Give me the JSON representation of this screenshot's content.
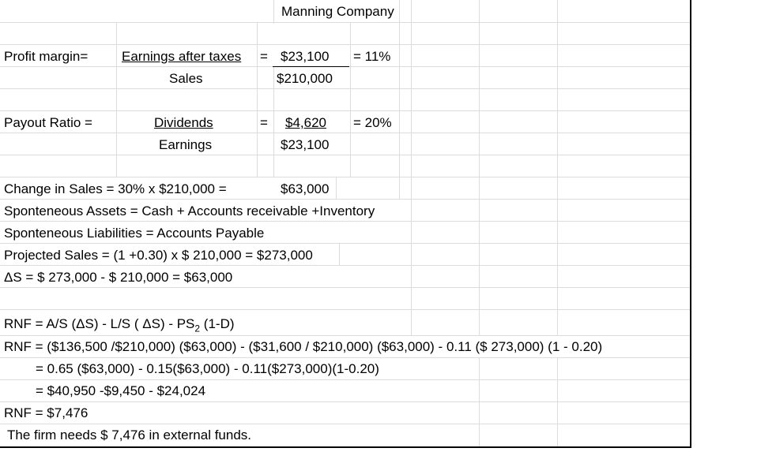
{
  "title": "Manning Company",
  "profit_margin": {
    "label": "Profit margin=",
    "numerator_label": "Earnings after taxes",
    "denominator_label": "Sales",
    "eq1": "=",
    "numerator_value": "$23,100",
    "denominator_value": "$210,000",
    "result": "= 11%"
  },
  "payout_ratio": {
    "label": "Payout Ratio =",
    "numerator_label": "Dividends",
    "denominator_label": "Earnings",
    "eq1": "=",
    "numerator_value": "$4,620",
    "denominator_value": "$23,100",
    "result": "= 20%"
  },
  "change_in_sales": {
    "label": "Change in Sales = 30% x $210,000 =",
    "value": "$63,000"
  },
  "spontaneous_assets": "Sponteneous Assets = Cash + Accounts receivable +Inventory",
  "spontaneous_liabilities": "Sponteneous Liabilities = Accounts Payable",
  "projected_sales": "Projected Sales = (1 +0.30) x $ 210,000 = $273,000",
  "delta_sales": "ΔS = $ 273,000 - $ 210,000 = $63,000",
  "rnf_formula": {
    "prefix": "RNF = A/S (ΔS) - L/S ( ΔS) - PS",
    "sub": "2",
    "suffix": " (1-D)"
  },
  "rnf_line1": "RNF = ($136,500 /$210,000) ($63,000) - ($31,600 / $210,000) ($63,000) - 0.11 ($ 273,000) (1 - 0.20)",
  "rnf_line2": "= 0.65 ($63,000) - 0.15($63,000) - 0.11($273,000)(1-0.20)",
  "rnf_line3": "= $40,950 -$9,450 - $24,024",
  "rnf_result": "RNF = $7,476",
  "conclusion": "The firm needs $ 7,476 in external funds."
}
